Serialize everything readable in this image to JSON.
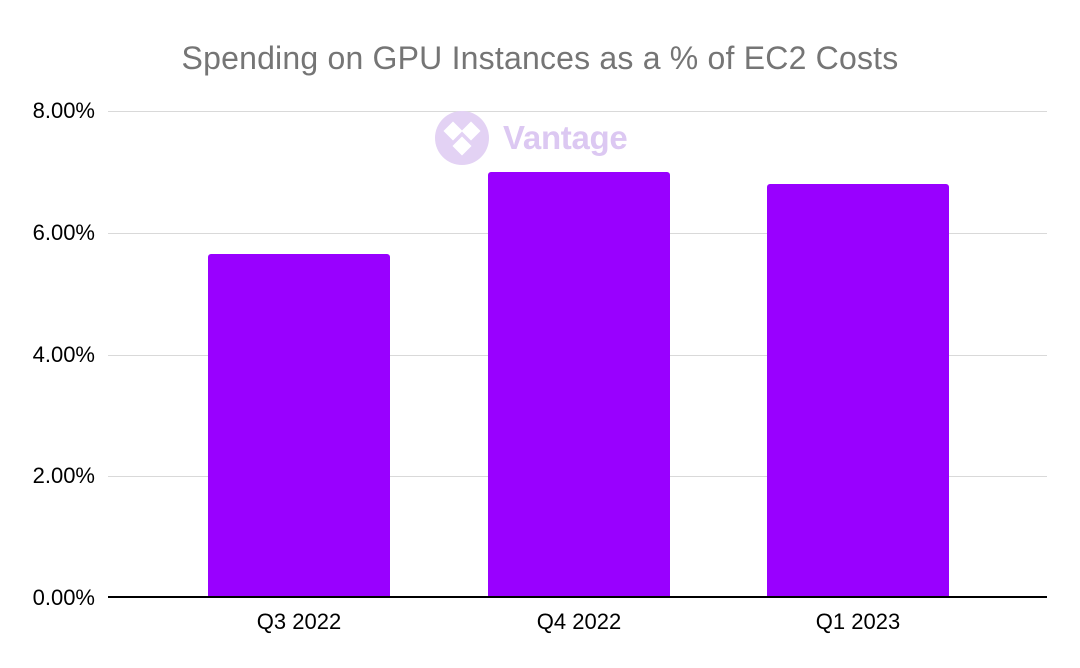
{
  "chart_data": {
    "type": "bar",
    "title": "Spending on GPU Instances as a % of EC2 Costs",
    "categories": [
      "Q3 2022",
      "Q4 2022",
      "Q1 2023"
    ],
    "values": [
      5.65,
      7.0,
      6.8
    ],
    "xlabel": "",
    "ylabel": "",
    "ylim": [
      0,
      8
    ],
    "grid": true,
    "legend_position": "none",
    "yticks": [
      {
        "value": 0,
        "label": "0.00%"
      },
      {
        "value": 2,
        "label": "2.00%"
      },
      {
        "value": 4,
        "label": "4.00%"
      },
      {
        "value": 6,
        "label": "6.00%"
      },
      {
        "value": 8,
        "label": "8.00%"
      }
    ],
    "colors": {
      "bar": "#9900ff",
      "title": "#757575",
      "gridline": "#d9d9d9",
      "axis_line": "#000000",
      "tick_labels": "#000000",
      "background": "#ffffff"
    }
  },
  "watermark": {
    "text": "Vantage",
    "icon": "vantage-diamonds-logo",
    "colors": {
      "text": "#dcc8f2",
      "circle": "#e3d2f4",
      "diamonds": "#ffffff"
    }
  }
}
